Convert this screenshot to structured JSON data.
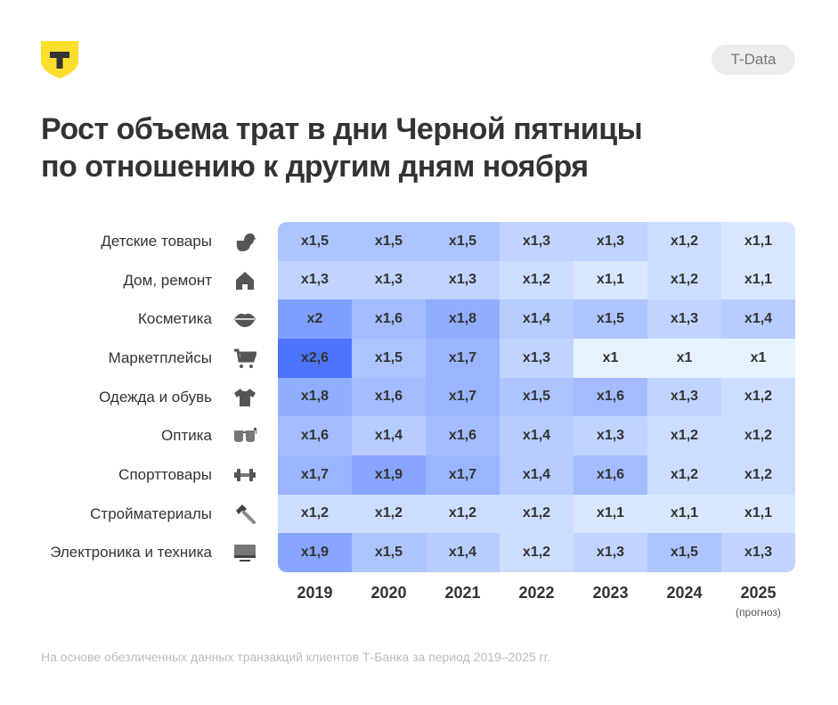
{
  "header": {
    "badge": "T-Data",
    "logo_letter": "Т",
    "title_line1": "Рост объема трат в дни Черной пятницы",
    "title_line2": "по отношению к другим дням ноября"
  },
  "chart_data": {
    "type": "heatmap",
    "title": "Рост объема трат в дни Черной пятницы по отношению к другим дням ноября",
    "columns": [
      "2019",
      "2020",
      "2021",
      "2022",
      "2023",
      "2024",
      "2025"
    ],
    "column_notes": [
      "",
      "",
      "",
      "",
      "",
      "",
      "(прогноз)"
    ],
    "rows": [
      {
        "label": "Детские товары",
        "icon": "duck-icon",
        "values": [
          1.5,
          1.5,
          1.5,
          1.3,
          1.3,
          1.2,
          1.1
        ]
      },
      {
        "label": "Дом, ремонт",
        "icon": "house-icon",
        "values": [
          1.3,
          1.3,
          1.3,
          1.2,
          1.1,
          1.2,
          1.1
        ]
      },
      {
        "label": "Косметика",
        "icon": "lips-icon",
        "values": [
          2,
          1.6,
          1.8,
          1.4,
          1.5,
          1.3,
          1.4
        ]
      },
      {
        "label": "Маркетплейсы",
        "icon": "cart-icon",
        "values": [
          2.6,
          1.5,
          1.7,
          1.3,
          1,
          1,
          1
        ]
      },
      {
        "label": "Одежда и обувь",
        "icon": "tshirt-icon",
        "values": [
          1.8,
          1.6,
          1.7,
          1.5,
          1.6,
          1.3,
          1.2
        ]
      },
      {
        "label": "Оптика",
        "icon": "glasses-icon",
        "values": [
          1.6,
          1.4,
          1.6,
          1.4,
          1.3,
          1.2,
          1.2
        ]
      },
      {
        "label": "Спорттовары",
        "icon": "dumbbell-icon",
        "values": [
          1.7,
          1.9,
          1.7,
          1.4,
          1.6,
          1.2,
          1.2
        ]
      },
      {
        "label": "Стройматериалы",
        "icon": "hammer-icon",
        "values": [
          1.2,
          1.2,
          1.2,
          1.2,
          1.1,
          1.1,
          1.1
        ]
      },
      {
        "label": "Электроника и техника",
        "icon": "monitor-icon",
        "values": [
          1.9,
          1.5,
          1.4,
          1.2,
          1.3,
          1.5,
          1.3
        ]
      }
    ],
    "value_prefix": "x",
    "color_scale": {
      "low": "#e6f3ff",
      "high": "#4d74ff",
      "domain": [
        1,
        2.6
      ]
    }
  },
  "footnote": "На основе обезличенных данных транзакций клиентов Т-Банка за период 2019–2025 гг.",
  "colors": {
    "logo": "#ffdd2d",
    "text": "#333333"
  }
}
